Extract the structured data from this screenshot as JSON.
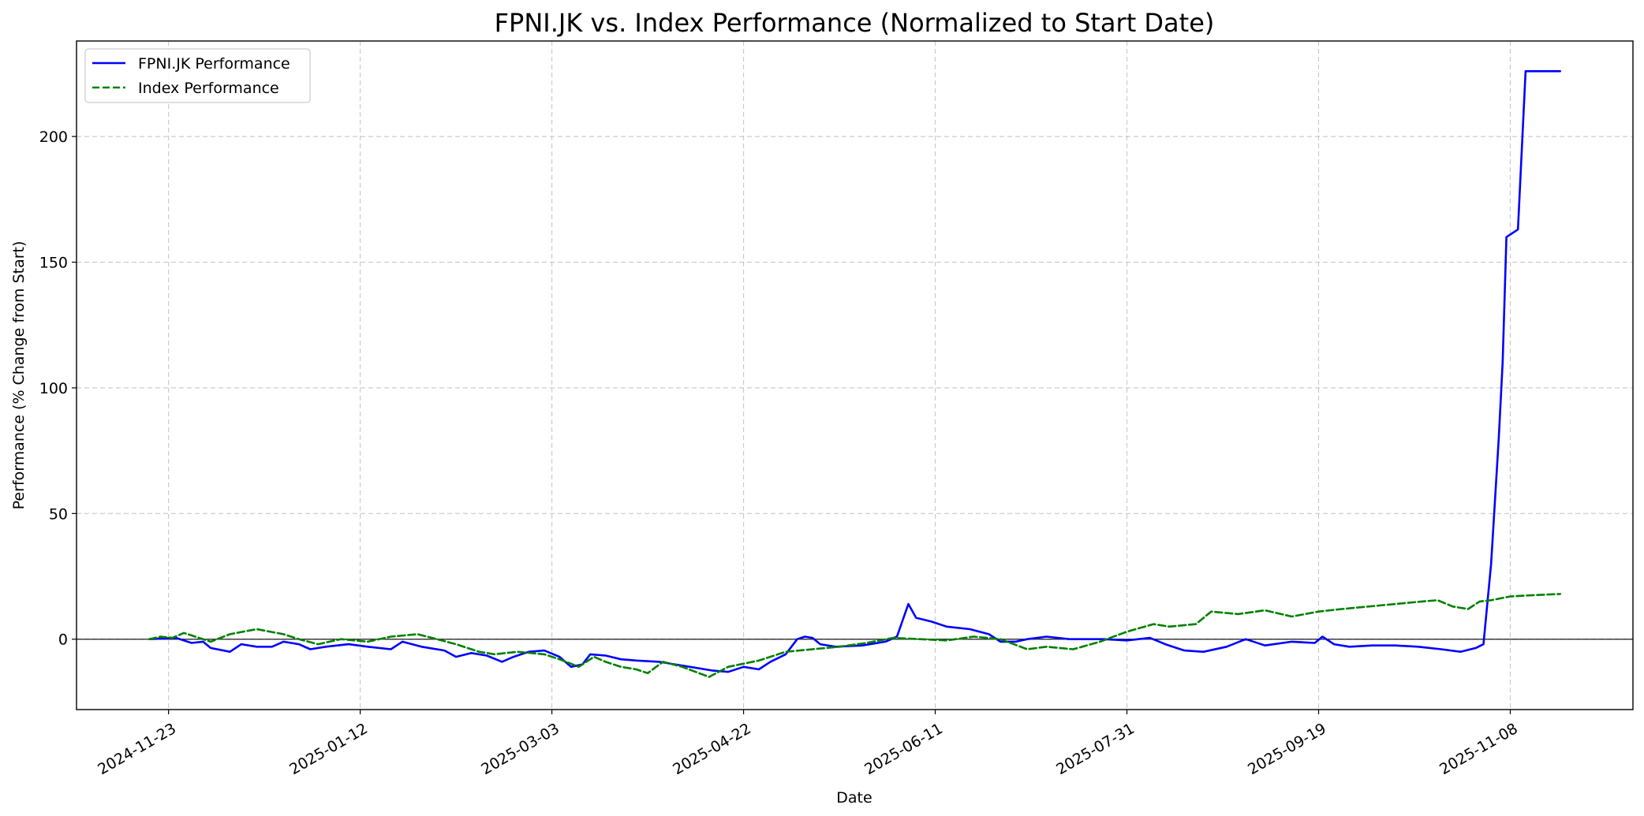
{
  "chart_data": {
    "type": "line",
    "title": "FPNI.JK vs. Index Performance (Normalized to Start Date)",
    "xlabel": "Date",
    "ylabel": "Performance (% Change from Start)",
    "x_axis": {
      "type": "date",
      "range": [
        "2024-10-30",
        "2025-12-10"
      ],
      "ticks": [
        "2024-11-23",
        "2025-01-12",
        "2025-03-03",
        "2025-04-22",
        "2025-06-11",
        "2025-07-31",
        "2025-09-19",
        "2025-11-08"
      ]
    },
    "ylim": [
      -28,
      238
    ],
    "yticks": [
      0,
      50,
      100,
      150,
      200
    ],
    "grid": true,
    "zero_line": true,
    "legend": {
      "position": "top-left",
      "entries": [
        "FPNI.JK Performance",
        "Index Performance"
      ]
    },
    "series": [
      {
        "name": "FPNI.JK Performance",
        "color": "#0000ff",
        "style": "solid",
        "points": [
          [
            "2024-11-18",
            0
          ],
          [
            "2024-11-25",
            0.5
          ],
          [
            "2024-11-29",
            -1.5
          ],
          [
            "2024-12-02",
            -1
          ],
          [
            "2024-12-04",
            -3.5
          ],
          [
            "2024-12-09",
            -5
          ],
          [
            "2024-12-12",
            -2
          ],
          [
            "2024-12-16",
            -3
          ],
          [
            "2024-12-20",
            -3
          ],
          [
            "2024-12-23",
            -1
          ],
          [
            "2024-12-27",
            -2
          ],
          [
            "2024-12-30",
            -4
          ],
          [
            "2025-01-03",
            -3
          ],
          [
            "2025-01-09",
            -2
          ],
          [
            "2025-01-14",
            -3
          ],
          [
            "2025-01-20",
            -4
          ],
          [
            "2025-01-23",
            -1
          ],
          [
            "2025-01-28",
            -3
          ],
          [
            "2025-02-03",
            -4.5
          ],
          [
            "2025-02-06",
            -7
          ],
          [
            "2025-02-10",
            -5.5
          ],
          [
            "2025-02-14",
            -6.5
          ],
          [
            "2025-02-18",
            -9
          ],
          [
            "2025-02-21",
            -7
          ],
          [
            "2025-02-25",
            -5
          ],
          [
            "2025-03-01",
            -4.5
          ],
          [
            "2025-03-05",
            -7
          ],
          [
            "2025-03-08",
            -11
          ],
          [
            "2025-03-11",
            -10
          ],
          [
            "2025-03-13",
            -6
          ],
          [
            "2025-03-17",
            -6.5
          ],
          [
            "2025-03-21",
            -8
          ],
          [
            "2025-03-25",
            -8.5
          ],
          [
            "2025-03-31",
            -9
          ],
          [
            "2025-04-04",
            -10
          ],
          [
            "2025-04-14",
            -12.5
          ],
          [
            "2025-04-18",
            -13
          ],
          [
            "2025-04-22",
            -11
          ],
          [
            "2025-04-26",
            -12
          ],
          [
            "2025-04-29",
            -9
          ],
          [
            "2025-05-03",
            -6
          ],
          [
            "2025-05-06",
            0
          ],
          [
            "2025-05-08",
            1
          ],
          [
            "2025-05-10",
            0.5
          ],
          [
            "2025-05-12",
            -2
          ],
          [
            "2025-05-16",
            -3
          ],
          [
            "2025-05-23",
            -2.5
          ],
          [
            "2025-05-29",
            -1
          ],
          [
            "2025-06-01",
            1
          ],
          [
            "2025-06-04",
            14
          ],
          [
            "2025-06-06",
            8.5
          ],
          [
            "2025-06-10",
            7
          ],
          [
            "2025-06-14",
            5
          ],
          [
            "2025-06-20",
            4
          ],
          [
            "2025-06-25",
            2
          ],
          [
            "2025-06-28",
            -1
          ],
          [
            "2025-07-02",
            -1
          ],
          [
            "2025-07-05",
            0
          ],
          [
            "2025-07-10",
            1
          ],
          [
            "2025-07-16",
            0
          ],
          [
            "2025-07-25",
            0
          ],
          [
            "2025-07-31",
            -0.5
          ],
          [
            "2025-08-06",
            0.5
          ],
          [
            "2025-08-10",
            -2
          ],
          [
            "2025-08-15",
            -4.5
          ],
          [
            "2025-08-20",
            -5
          ],
          [
            "2025-08-26",
            -3
          ],
          [
            "2025-08-31",
            0
          ],
          [
            "2025-09-05",
            -2.5
          ],
          [
            "2025-09-12",
            -1
          ],
          [
            "2025-09-18",
            -1.5
          ],
          [
            "2025-09-20",
            1
          ],
          [
            "2025-09-23",
            -2
          ],
          [
            "2025-09-27",
            -3
          ],
          [
            "2025-10-03",
            -2.5
          ],
          [
            "2025-10-09",
            -2.5
          ],
          [
            "2025-10-15",
            -3
          ],
          [
            "2025-10-21",
            -4
          ],
          [
            "2025-10-26",
            -5
          ],
          [
            "2025-10-30",
            -3.5
          ],
          [
            "2025-11-01",
            -2
          ],
          [
            "2025-11-03",
            30
          ],
          [
            "2025-11-05",
            80
          ],
          [
            "2025-11-06",
            110
          ],
          [
            "2025-11-07",
            160
          ],
          [
            "2025-11-10",
            163
          ],
          [
            "2025-11-12",
            226
          ],
          [
            "2025-11-16",
            226
          ],
          [
            "2025-11-21",
            226
          ]
        ]
      },
      {
        "name": "Index Performance",
        "color": "#008000",
        "style": "dashed",
        "points": [
          [
            "2024-11-18",
            0
          ],
          [
            "2024-11-21",
            1
          ],
          [
            "2024-11-24",
            0.5
          ],
          [
            "2024-11-27",
            2.5
          ],
          [
            "2024-12-01",
            0.5
          ],
          [
            "2024-12-04",
            -1
          ],
          [
            "2024-12-09",
            2
          ],
          [
            "2024-12-16",
            4
          ],
          [
            "2024-12-23",
            2
          ],
          [
            "2024-12-27",
            0
          ],
          [
            "2025-01-01",
            -2
          ],
          [
            "2025-01-07",
            0
          ],
          [
            "2025-01-14",
            -1
          ],
          [
            "2025-01-20",
            1
          ],
          [
            "2025-01-27",
            2
          ],
          [
            "2025-02-01",
            0
          ],
          [
            "2025-02-06",
            -2
          ],
          [
            "2025-02-12",
            -5
          ],
          [
            "2025-02-16",
            -6
          ],
          [
            "2025-02-22",
            -5
          ],
          [
            "2025-03-01",
            -6
          ],
          [
            "2025-03-05",
            -8
          ],
          [
            "2025-03-10",
            -11
          ],
          [
            "2025-03-14",
            -7
          ],
          [
            "2025-03-17",
            -9
          ],
          [
            "2025-03-21",
            -11
          ],
          [
            "2025-03-25",
            -12
          ],
          [
            "2025-03-28",
            -13.5
          ],
          [
            "2025-04-01",
            -9
          ],
          [
            "2025-04-06",
            -11
          ],
          [
            "2025-04-13",
            -15
          ],
          [
            "2025-04-18",
            -11
          ],
          [
            "2025-04-26",
            -8.5
          ],
          [
            "2025-05-03",
            -5
          ],
          [
            "2025-05-10",
            -4
          ],
          [
            "2025-05-17",
            -3
          ],
          [
            "2025-05-24",
            -1.5
          ],
          [
            "2025-05-31",
            0.5
          ],
          [
            "2025-06-07",
            0
          ],
          [
            "2025-06-14",
            -0.5
          ],
          [
            "2025-06-21",
            1
          ],
          [
            "2025-06-28",
            0
          ],
          [
            "2025-07-05",
            -4
          ],
          [
            "2025-07-10",
            -3
          ],
          [
            "2025-07-17",
            -4
          ],
          [
            "2025-07-24",
            -1
          ],
          [
            "2025-07-31",
            3
          ],
          [
            "2025-08-07",
            6
          ],
          [
            "2025-08-11",
            5
          ],
          [
            "2025-08-18",
            6
          ],
          [
            "2025-08-22",
            11
          ],
          [
            "2025-08-29",
            10
          ],
          [
            "2025-09-05",
            11.5
          ],
          [
            "2025-09-12",
            9
          ],
          [
            "2025-09-19",
            11
          ],
          [
            "2025-09-25",
            12
          ],
          [
            "2025-10-02",
            13
          ],
          [
            "2025-10-09",
            14
          ],
          [
            "2025-10-16",
            15
          ],
          [
            "2025-10-20",
            15.5
          ],
          [
            "2025-10-24",
            13
          ],
          [
            "2025-10-28",
            12
          ],
          [
            "2025-10-31",
            15
          ],
          [
            "2025-11-03",
            15.5
          ],
          [
            "2025-11-08",
            17
          ],
          [
            "2025-11-14",
            17.5
          ],
          [
            "2025-11-21",
            18
          ]
        ]
      }
    ]
  }
}
